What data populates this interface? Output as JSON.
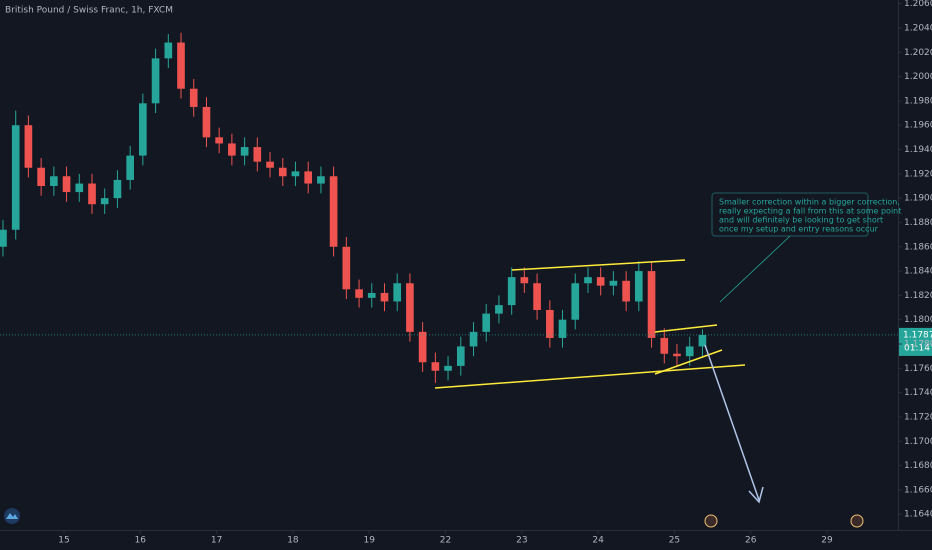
{
  "chart_data": {
    "type": "candlestick",
    "title": "British Pound / Swiss Franc, 1h, FXCM",
    "up_color": "#26a69a",
    "down_color": "#ef5350",
    "grid": false,
    "xlim": [
      -0.839,
      10.93
    ],
    "ylim": [
      1.1627,
      1.2063
    ],
    "xticks": [
      {
        "value": 0,
        "label": "15"
      },
      {
        "value": 1,
        "label": "16"
      },
      {
        "value": 2,
        "label": "17"
      },
      {
        "value": 3,
        "label": "18"
      },
      {
        "value": 4,
        "label": "19"
      },
      {
        "value": 5,
        "label": "22"
      },
      {
        "value": 6,
        "label": "23"
      },
      {
        "value": 7,
        "label": "24"
      },
      {
        "value": 8,
        "label": "25"
      },
      {
        "value": 9,
        "label": "26"
      },
      {
        "value": 10,
        "label": "29"
      }
    ],
    "yticks": [
      {
        "value": 1.164,
        "label": "1.16400"
      },
      {
        "value": 1.166,
        "label": "1.16600"
      },
      {
        "value": 1.168,
        "label": "1.16800"
      },
      {
        "value": 1.17,
        "label": "1.17000"
      },
      {
        "value": 1.172,
        "label": "1.17200"
      },
      {
        "value": 1.174,
        "label": "1.17400"
      },
      {
        "value": 1.176,
        "label": "1.17600"
      },
      {
        "value": 1.178,
        "label": "1.17800"
      },
      {
        "value": 1.18,
        "label": "1.18000"
      },
      {
        "value": 1.182,
        "label": "1.18200"
      },
      {
        "value": 1.184,
        "label": "1.18400"
      },
      {
        "value": 1.186,
        "label": "1.18600"
      },
      {
        "value": 1.188,
        "label": "1.18800"
      },
      {
        "value": 1.19,
        "label": "1.19000"
      },
      {
        "value": 1.192,
        "label": "1.19200"
      },
      {
        "value": 1.194,
        "label": "1.19400"
      },
      {
        "value": 1.196,
        "label": "1.19600"
      },
      {
        "value": 1.198,
        "label": "1.19800"
      },
      {
        "value": 1.2,
        "label": "1.20000"
      },
      {
        "value": 1.202,
        "label": "1.20200"
      },
      {
        "value": 1.204,
        "label": "1.20400"
      },
      {
        "value": 1.206,
        "label": "1.20600"
      }
    ],
    "x": [
      -0.8,
      -0.633,
      -0.467,
      -0.3,
      -0.133,
      0.033,
      0.2,
      0.367,
      0.533,
      0.7,
      0.867,
      1.033,
      1.2,
      1.367,
      1.533,
      1.7,
      1.867,
      2.033,
      2.2,
      2.367,
      2.533,
      2.7,
      2.867,
      3.033,
      3.2,
      3.367,
      3.533,
      3.7,
      3.867,
      4.033,
      4.2,
      4.367,
      4.533,
      4.7,
      4.867,
      5.033,
      5.2,
      5.367,
      5.533,
      5.7,
      5.867,
      6.033,
      6.2,
      6.367,
      6.533,
      6.7,
      6.867,
      7.033,
      7.2,
      7.367,
      7.533,
      7.7,
      7.867,
      8.033,
      8.2,
      8.367
    ],
    "open": [
      1.186,
      1.1874,
      1.196,
      1.1925,
      1.191,
      1.1918,
      1.1905,
      1.1912,
      1.1895,
      1.19,
      1.1915,
      1.1935,
      1.1978,
      1.2015,
      1.2028,
      1.199,
      1.1975,
      1.195,
      1.1945,
      1.1935,
      1.1942,
      1.193,
      1.1925,
      1.1918,
      1.1922,
      1.1912,
      1.1918,
      1.186,
      1.1825,
      1.1818,
      1.1822,
      1.1815,
      1.183,
      1.179,
      1.1765,
      1.1758,
      1.1762,
      1.1778,
      1.179,
      1.1805,
      1.1812,
      1.1835,
      1.183,
      1.1808,
      1.1785,
      1.18,
      1.183,
      1.1835,
      1.1828,
      1.1832,
      1.1815,
      1.184,
      1.1785,
      1.1772,
      1.177,
      1.1778
    ],
    "high": [
      1.1882,
      1.1972,
      1.1968,
      1.1933,
      1.1926,
      1.1926,
      1.192,
      1.192,
      1.1908,
      1.1923,
      1.1943,
      1.1986,
      1.2023,
      1.2035,
      1.2036,
      1.1998,
      1.1983,
      1.1958,
      1.1953,
      1.195,
      1.195,
      1.1938,
      1.1933,
      1.193,
      1.193,
      1.1926,
      1.1926,
      1.1868,
      1.1833,
      1.183,
      1.183,
      1.1838,
      1.1838,
      1.1798,
      1.1773,
      1.177,
      1.1786,
      1.1798,
      1.1813,
      1.182,
      1.1843,
      1.1843,
      1.1838,
      1.1816,
      1.1808,
      1.1838,
      1.1843,
      1.1843,
      1.184,
      1.184,
      1.1848,
      1.1848,
      1.1793,
      1.178,
      1.1786,
      1.1792
    ],
    "low": [
      1.1852,
      1.1866,
      1.1917,
      1.1902,
      1.1902,
      1.1897,
      1.1897,
      1.1887,
      1.1887,
      1.1892,
      1.1907,
      1.1927,
      1.197,
      1.2007,
      1.1982,
      1.1967,
      1.1942,
      1.1937,
      1.1927,
      1.1927,
      1.1922,
      1.1917,
      1.191,
      1.191,
      1.1904,
      1.1904,
      1.1852,
      1.1817,
      1.181,
      1.181,
      1.1807,
      1.1807,
      1.1782,
      1.1757,
      1.1748,
      1.175,
      1.1754,
      1.177,
      1.1782,
      1.1797,
      1.1804,
      1.1822,
      1.18,
      1.1777,
      1.1777,
      1.1792,
      1.1822,
      1.182,
      1.182,
      1.1807,
      1.1807,
      1.1777,
      1.1764,
      1.1762,
      1.1762,
      1.177
    ],
    "close": [
      1.1874,
      1.196,
      1.1925,
      1.191,
      1.1918,
      1.1905,
      1.1912,
      1.1895,
      1.19,
      1.1915,
      1.1935,
      1.1978,
      1.2015,
      1.2028,
      1.199,
      1.1975,
      1.195,
      1.1945,
      1.1935,
      1.1942,
      1.193,
      1.1925,
      1.1918,
      1.1922,
      1.1912,
      1.1918,
      1.186,
      1.1825,
      1.1818,
      1.1822,
      1.1815,
      1.183,
      1.179,
      1.1765,
      1.1758,
      1.1762,
      1.1778,
      1.179,
      1.1805,
      1.1812,
      1.1835,
      1.183,
      1.1808,
      1.1785,
      1.18,
      1.183,
      1.1835,
      1.1828,
      1.1832,
      1.1815,
      1.184,
      1.1785,
      1.1772,
      1.177,
      1.1778,
      1.17875
    ],
    "countdown": "01:14",
    "annotation": [
      "Smaller correction within a bigger correction,",
      "really expecting a fall from this at some point",
      "and will definitely be looking to get short",
      "once my setup and entry reasons occur"
    ]
  }
}
